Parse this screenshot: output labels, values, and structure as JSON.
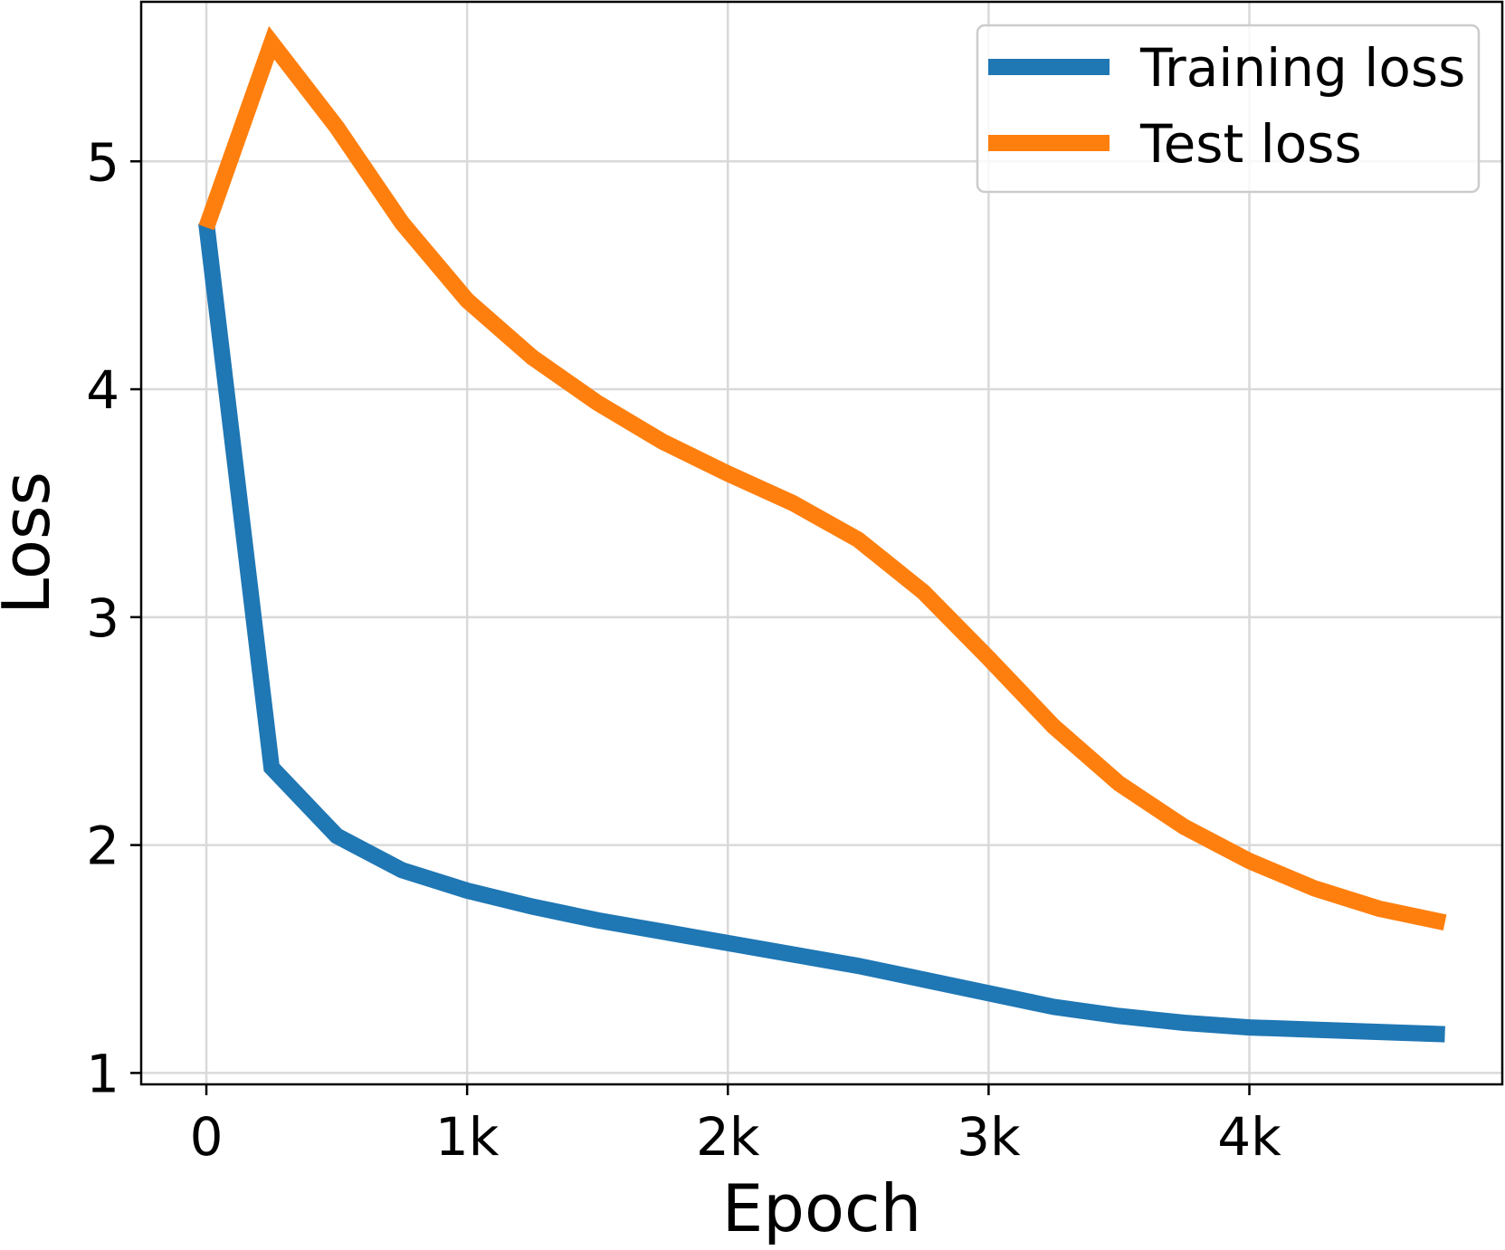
{
  "chart_data": {
    "type": "line",
    "title": "",
    "xlabel": "Epoch",
    "ylabel": "Loss",
    "xlim": [
      -250,
      4970
    ],
    "ylim": [
      0.95,
      5.7
    ],
    "grid": true,
    "legend_position": "top-right",
    "x_ticks": [
      {
        "value": 0,
        "label": "0"
      },
      {
        "value": 1000,
        "label": "1k"
      },
      {
        "value": 2000,
        "label": "2k"
      },
      {
        "value": 3000,
        "label": "3k"
      },
      {
        "value": 4000,
        "label": "4k"
      }
    ],
    "y_ticks": [
      {
        "value": 1,
        "label": "1"
      },
      {
        "value": 2,
        "label": "2"
      },
      {
        "value": 3,
        "label": "3"
      },
      {
        "value": 4,
        "label": "4"
      },
      {
        "value": 5,
        "label": "5"
      }
    ],
    "x": [
      0,
      250,
      500,
      750,
      1000,
      1250,
      1500,
      1750,
      2000,
      2250,
      2500,
      2750,
      3000,
      3250,
      3500,
      3750,
      4000,
      4250,
      4500,
      4750
    ],
    "series": [
      {
        "name": "Training loss",
        "color": "#1f77b4",
        "values": [
          4.73,
          2.34,
          2.04,
          1.89,
          1.8,
          1.73,
          1.67,
          1.62,
          1.57,
          1.52,
          1.47,
          1.41,
          1.35,
          1.29,
          1.25,
          1.22,
          1.2,
          1.19,
          1.18,
          1.17
        ]
      },
      {
        "name": "Test loss",
        "color": "#ff7f0e",
        "values": [
          4.71,
          5.52,
          5.15,
          4.73,
          4.39,
          4.14,
          3.94,
          3.77,
          3.63,
          3.5,
          3.34,
          3.11,
          2.82,
          2.52,
          2.27,
          2.08,
          1.93,
          1.81,
          1.72,
          1.66
        ]
      }
    ]
  }
}
